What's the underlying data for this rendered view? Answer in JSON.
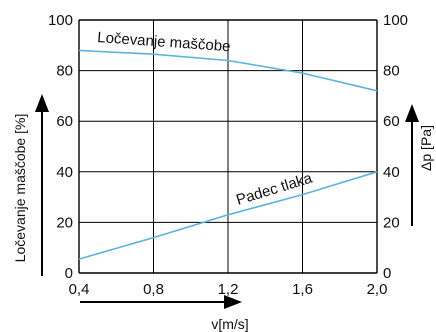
{
  "chart_data": {
    "type": "line",
    "title": "",
    "xlabel": "v[m/s]",
    "ylabel_left": "Ločevanje maščobe [%]",
    "ylabel_right": "Δp [Pa]",
    "xlim": [
      0.4,
      2.0
    ],
    "ylim_left": [
      0,
      100
    ],
    "ylim_right": [
      0,
      100
    ],
    "x_ticks": [
      "0,4",
      "0,8",
      "1,2",
      "1,6",
      "2,0"
    ],
    "y_ticks_left": [
      "0",
      "20",
      "40",
      "60",
      "80",
      "100"
    ],
    "y_ticks_right": [
      "0",
      "20",
      "40",
      "60",
      "80",
      "100"
    ],
    "grid": true,
    "line_color": "#5ab4dc",
    "series": [
      {
        "name": "Ločevanje maščobe",
        "axis": "left",
        "x": [
          0.4,
          0.8,
          1.2,
          1.6,
          2.0
        ],
        "y": [
          88,
          86.5,
          84,
          79,
          72
        ]
      },
      {
        "name": "Padec tlaka",
        "axis": "right",
        "x": [
          0.4,
          0.8,
          1.2,
          1.6,
          2.0
        ],
        "y": [
          5.5,
          14,
          23,
          31,
          40
        ]
      }
    ]
  }
}
